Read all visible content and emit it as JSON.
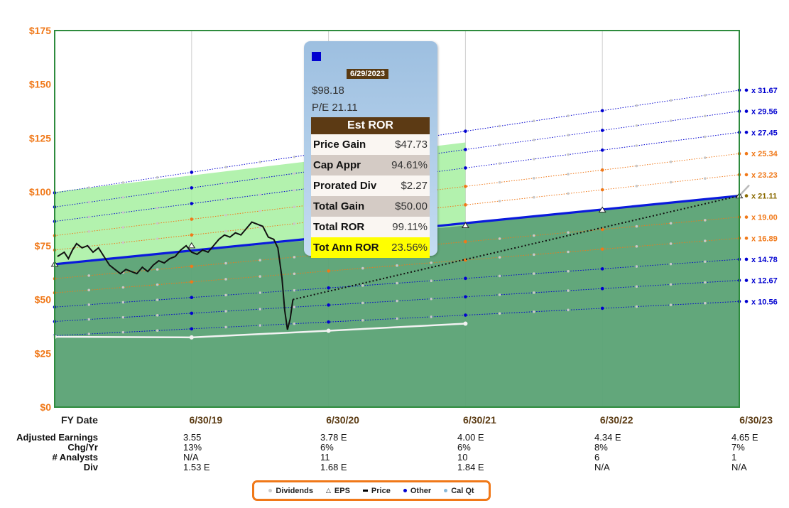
{
  "chart_data": {
    "type": "line",
    "y_axis": {
      "ylim": [
        0,
        175
      ],
      "tick_values": [
        0,
        25,
        50,
        75,
        100,
        125,
        150,
        175
      ],
      "tick_labels": [
        "$0",
        "$25",
        "$50",
        "$75",
        "$100",
        "$125",
        "$150",
        "$175"
      ],
      "label_color": "#f07818"
    },
    "x_axis": {
      "header": "FY Date",
      "x_range": [
        2018.5,
        2023.5
      ],
      "ticks": [
        {
          "x": 2019.5,
          "label": "6/30/19"
        },
        {
          "x": 2020.5,
          "label": "6/30/20"
        },
        {
          "x": 2021.5,
          "label": "6/30/21"
        },
        {
          "x": 2022.5,
          "label": "6/30/22"
        },
        {
          "x": 2023.5,
          "label": "6/30/23"
        }
      ]
    },
    "pe_lines": [
      {
        "label": "x 31.67",
        "start": 99.6,
        "end": 147.3,
        "color": "#0000d0"
      },
      {
        "label": "x 29.56",
        "start": 93.0,
        "end": 137.5,
        "color": "#0000d0"
      },
      {
        "label": "x 27.45",
        "start": 86.3,
        "end": 127.7,
        "color": "#0000d0"
      },
      {
        "label": "x 25.34",
        "start": 79.7,
        "end": 117.8,
        "color": "#f07818"
      },
      {
        "label": "x 23.23",
        "start": 73.0,
        "end": 108.0,
        "color": "#f07818"
      },
      {
        "label": "x 21.11",
        "start": 66.4,
        "end": 98.2,
        "color": "#0000d0",
        "highlight": true
      },
      {
        "label": "x 19.00",
        "start": 59.7,
        "end": 88.3,
        "color": "#f07818"
      },
      {
        "label": "x 16.89",
        "start": 53.1,
        "end": 78.5,
        "color": "#f07818"
      },
      {
        "label": "x 14.78",
        "start": 46.5,
        "end": 68.7,
        "color": "#0000d0"
      },
      {
        "label": "x 12.67",
        "start": 39.8,
        "end": 58.9,
        "color": "#0000d0"
      },
      {
        "label": "x 10.56",
        "start": 33.2,
        "end": 49.1,
        "color": "#0000d0"
      }
    ],
    "eps_markers": [
      {
        "x": 2018.5,
        "y": 66.4
      },
      {
        "x": 2019.5,
        "y": 75.0
      },
      {
        "x": 2021.5,
        "y": 84.4
      },
      {
        "x": 2022.5,
        "y": 91.6
      },
      {
        "x": 2023.5,
        "y": 98.2
      }
    ],
    "price_series": [
      [
        2018.52,
        70
      ],
      [
        2018.57,
        72
      ],
      [
        2018.6,
        69
      ],
      [
        2018.63,
        73
      ],
      [
        2018.66,
        76
      ],
      [
        2018.7,
        74
      ],
      [
        2018.74,
        75
      ],
      [
        2018.78,
        72
      ],
      [
        2018.82,
        74
      ],
      [
        2018.86,
        70
      ],
      [
        2018.9,
        66
      ],
      [
        2018.94,
        64
      ],
      [
        2018.98,
        62
      ],
      [
        2019.02,
        64
      ],
      [
        2019.06,
        63
      ],
      [
        2019.1,
        62
      ],
      [
        2019.14,
        65
      ],
      [
        2019.18,
        63
      ],
      [
        2019.22,
        66
      ],
      [
        2019.26,
        68
      ],
      [
        2019.3,
        67
      ],
      [
        2019.34,
        69
      ],
      [
        2019.38,
        70
      ],
      [
        2019.42,
        73
      ],
      [
        2019.46,
        75
      ],
      [
        2019.5,
        72
      ],
      [
        2019.54,
        71
      ],
      [
        2019.58,
        73
      ],
      [
        2019.62,
        72
      ],
      [
        2019.66,
        75
      ],
      [
        2019.7,
        78
      ],
      [
        2019.74,
        80
      ],
      [
        2019.78,
        79
      ],
      [
        2019.82,
        81
      ],
      [
        2019.86,
        80
      ],
      [
        2019.9,
        83
      ],
      [
        2019.94,
        86
      ],
      [
        2019.98,
        85
      ],
      [
        2020.02,
        84
      ],
      [
        2020.06,
        79
      ],
      [
        2020.1,
        78
      ],
      [
        2020.13,
        74
      ],
      [
        2020.16,
        60
      ],
      [
        2020.18,
        45
      ],
      [
        2020.2,
        36
      ],
      [
        2020.22,
        41
      ],
      [
        2020.24,
        50
      ]
    ],
    "projected_price": [
      [
        2020.24,
        50
      ],
      [
        2023.5,
        98.2
      ]
    ],
    "dividend_series": [
      [
        2018.5,
        32.7
      ],
      [
        2019.5,
        32.4
      ],
      [
        2020.5,
        35.5
      ],
      [
        2021.5,
        38.8
      ]
    ],
    "green_band": {
      "x": [
        2018.5,
        2021.5
      ],
      "top": [
        100,
        123
      ],
      "bottom": [
        66.4,
        84.4
      ]
    },
    "table_rows": [
      {
        "label": "Adjusted Earnings",
        "values": [
          "3.55",
          "3.78 E",
          "4.00 E",
          "4.34 E",
          "4.65 E"
        ]
      },
      {
        "label": "Chg/Yr",
        "values": [
          "13%",
          "6%",
          "6%",
          "8%",
          "7%"
        ]
      },
      {
        "label": "# Analysts",
        "values": [
          "N/A",
          "11",
          "10",
          "6",
          "1"
        ]
      },
      {
        "label": "Div",
        "values": [
          "1.53 E",
          "1.68 E",
          "1.84 E",
          "N/A",
          "N/A"
        ]
      }
    ],
    "legend": [
      {
        "label": "Dividends",
        "marker": "dot",
        "color": "#cccccc"
      },
      {
        "label": "EPS",
        "marker": "triangle",
        "color": "#222222"
      },
      {
        "label": "Price",
        "marker": "dash",
        "color": "#000000"
      },
      {
        "label": "Other",
        "marker": "dot",
        "color": "#0000d0"
      },
      {
        "label": "Cal Qt",
        "marker": "dot",
        "color": "#88b8d8"
      }
    ]
  },
  "tooltip": {
    "date": "6/29/2023",
    "price": "$98.18",
    "pe": "P/E 21.11",
    "header": "Est ROR",
    "rows": [
      {
        "label": "Price Gain",
        "value": "$47.73"
      },
      {
        "label": "Cap Appr",
        "value": "94.61%"
      },
      {
        "label": "Prorated Div",
        "value": "$2.27"
      },
      {
        "label": "Total Gain",
        "value": "$50.00"
      },
      {
        "label": "Total ROR",
        "value": "99.11%"
      },
      {
        "label": "Tot Ann ROR",
        "value": "23.56%"
      }
    ]
  }
}
